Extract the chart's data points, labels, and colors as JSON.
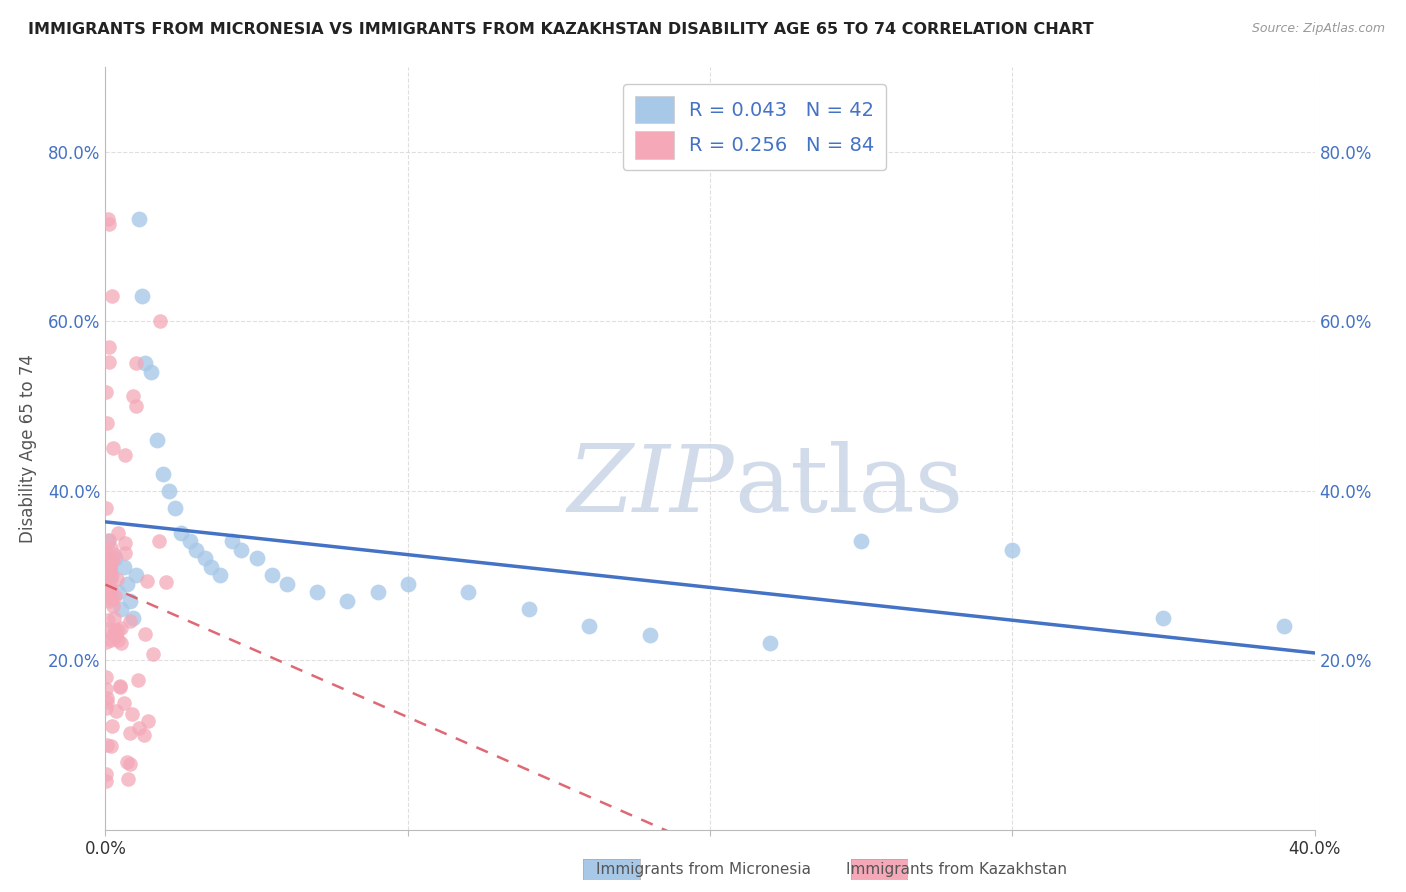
{
  "title": "IMMIGRANTS FROM MICRONESIA VS IMMIGRANTS FROM KAZAKHSTAN DISABILITY AGE 65 TO 74 CORRELATION CHART",
  "source": "Source: ZipAtlas.com",
  "ylabel": "Disability Age 65 to 74",
  "xmin": 0.0,
  "xmax": 0.4,
  "ymin": 0.0,
  "ymax": 0.9,
  "xtick_positions": [
    0.0,
    0.1,
    0.2,
    0.3,
    0.4
  ],
  "xtick_labels": [
    "0.0%",
    "",
    "",
    "",
    "40.0%"
  ],
  "ytick_positions": [
    0.2,
    0.4,
    0.6,
    0.8
  ],
  "ytick_labels": [
    "20.0%",
    "40.0%",
    "60.0%",
    "80.0%"
  ],
  "color_micronesia": "#a8c8e8",
  "color_kazakhstan": "#f4a8b8",
  "color_micronesia_line": "#4472c4",
  "color_kazakhstan_line": "#d94f5c",
  "R_micronesia": 0.043,
  "N_micronesia": 42,
  "R_kazakhstan": 0.256,
  "N_kazakhstan": 84,
  "legend_label_micronesia": "Immigrants from Micronesia",
  "legend_label_kazakhstan": "Immigrants from Kazakhstan",
  "background_color": "#ffffff",
  "grid_color": "#d8d8d8",
  "watermark_zip": "ZIP",
  "watermark_atlas": "atlas",
  "watermark_color": "#ccd8e8"
}
